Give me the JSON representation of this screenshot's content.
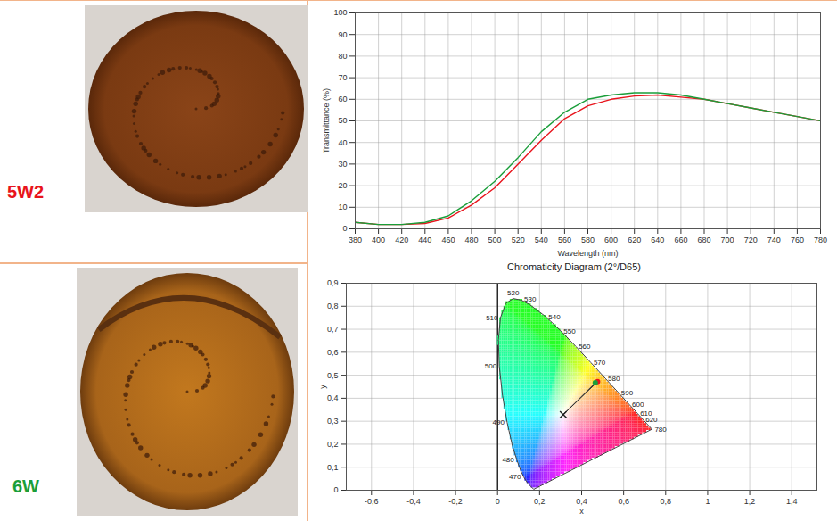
{
  "chart_data": [
    {
      "type": "line",
      "xlabel": "Wavelength (nm)",
      "ylabel": "Transmittance (%)",
      "x": [
        380,
        400,
        420,
        440,
        460,
        480,
        500,
        520,
        540,
        560,
        580,
        600,
        620,
        640,
        660,
        680,
        700,
        720,
        740,
        760,
        780
      ],
      "series": [
        {
          "name": "5W2",
          "color": "#e8141c",
          "values": [
            3,
            2,
            2,
            2.5,
            5,
            11,
            19,
            30,
            41,
            51,
            57,
            60,
            61.5,
            62,
            61,
            60,
            58,
            56,
            54,
            52,
            50
          ]
        },
        {
          "name": "6W",
          "color": "#1a9e3a",
          "values": [
            3,
            2,
            2,
            3,
            6,
            13,
            22,
            33,
            45,
            54,
            60,
            62,
            63,
            63,
            62,
            60,
            58,
            56,
            54,
            52,
            50
          ]
        }
      ],
      "xlim": [
        380,
        780
      ],
      "ylim": [
        0,
        100
      ],
      "xticks": [
        380,
        400,
        420,
        440,
        460,
        480,
        500,
        520,
        540,
        560,
        580,
        600,
        620,
        640,
        660,
        680,
        700,
        720,
        740,
        760,
        780
      ],
      "yticks": [
        0,
        10,
        20,
        30,
        40,
        50,
        60,
        70,
        80,
        90,
        100
      ],
      "grid": true
    },
    {
      "type": "chromaticity",
      "title": "Chromaticity Diagram (2°/D65)",
      "xlabel": "x",
      "ylabel": "y",
      "locus": {
        "wavelength": [
          380,
          420,
          440,
          450,
          460,
          470,
          475,
          480,
          485,
          490,
          495,
          500,
          505,
          510,
          515,
          520,
          525,
          530,
          540,
          550,
          560,
          570,
          580,
          590,
          600,
          610,
          620,
          630,
          640,
          700,
          780
        ],
        "x": [
          0.1741,
          0.1714,
          0.1644,
          0.1566,
          0.144,
          0.1241,
          0.1096,
          0.0913,
          0.0687,
          0.0454,
          0.0235,
          0.0082,
          0.0039,
          0.0139,
          0.0389,
          0.0743,
          0.1142,
          0.1547,
          0.2296,
          0.3016,
          0.3731,
          0.4441,
          0.5125,
          0.5752,
          0.627,
          0.6658,
          0.6915,
          0.7079,
          0.719,
          0.7347,
          0.7347
        ],
        "y": [
          0.005,
          0.0051,
          0.0109,
          0.0177,
          0.0297,
          0.0578,
          0.0868,
          0.1327,
          0.2007,
          0.295,
          0.4127,
          0.5384,
          0.6548,
          0.7502,
          0.812,
          0.8338,
          0.8262,
          0.8059,
          0.7543,
          0.6923,
          0.6245,
          0.5547,
          0.4866,
          0.4242,
          0.3725,
          0.334,
          0.3083,
          0.292,
          0.2809,
          0.2653,
          0.2653
        ]
      },
      "labeled_wavelengths": [
        470,
        480,
        490,
        500,
        510,
        520,
        530,
        540,
        550,
        560,
        570,
        580,
        590,
        600,
        610,
        620,
        780
      ],
      "white_point": {
        "x": 0.3127,
        "y": 0.329,
        "marker": "x"
      },
      "points": [
        {
          "name": "5W2",
          "color": "#e8141c",
          "x": 0.476,
          "y": 0.472
        },
        {
          "name": "6W",
          "color": "#1a9e3a",
          "x": 0.465,
          "y": 0.467
        }
      ],
      "xlim": [
        -0.72,
        1.52
      ],
      "ylim": [
        0,
        0.9
      ],
      "xticks": [
        {
          "value": -0.6,
          "label": "-0,6"
        },
        {
          "value": -0.4,
          "label": "-0,4"
        },
        {
          "value": -0.2,
          "label": "-0,2"
        },
        0,
        {
          "value": 0.2,
          "label": "0,2"
        },
        {
          "value": 0.4,
          "label": "0,4"
        },
        {
          "value": 0.6,
          "label": "0,6"
        },
        {
          "value": 0.8,
          "label": "0,8"
        },
        1,
        {
          "value": 1.2,
          "label": "1,2"
        },
        {
          "value": 1.4,
          "label": "1,4"
        }
      ],
      "yticks": [
        0,
        {
          "value": 0.1,
          "label": "0,1"
        },
        {
          "value": 0.2,
          "label": "0,2"
        },
        {
          "value": 0.3,
          "label": "0,3"
        },
        {
          "value": 0.4,
          "label": "0,4"
        },
        {
          "value": 0.5,
          "label": "0,5"
        },
        {
          "value": 0.6,
          "label": "0,6"
        },
        {
          "value": 0.7,
          "label": "0,7"
        },
        {
          "value": 0.8,
          "label": "0,8"
        },
        {
          "value": 0.9,
          "label": "0,9"
        }
      ],
      "grid": true
    }
  ]
}
